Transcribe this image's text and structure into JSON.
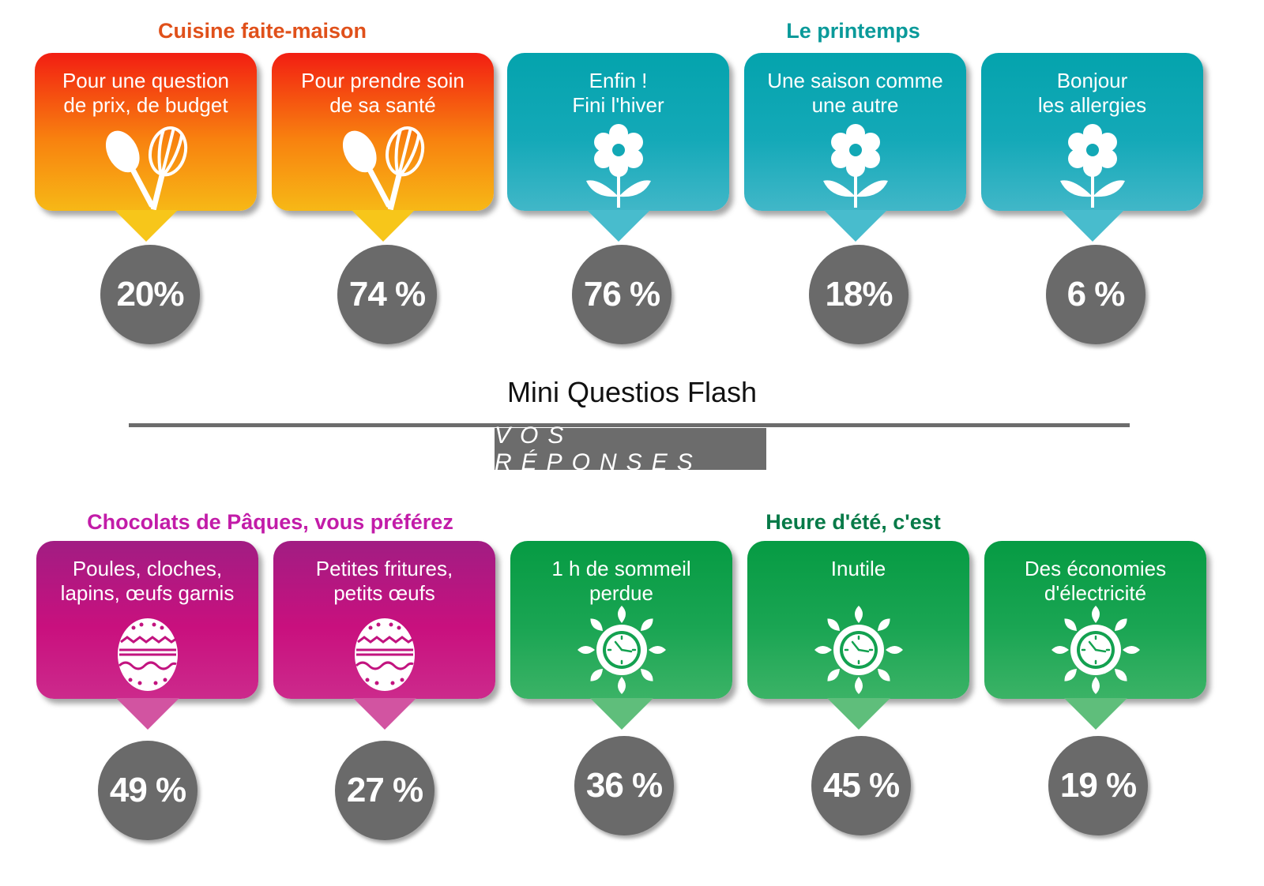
{
  "header": {
    "title": "Mini Questios Flash",
    "subtitle": "VOS RÉPONSES"
  },
  "colors": {
    "orange": "#f23c12",
    "teal": "#0a9a9a",
    "magenta": "#c21ca8",
    "green": "#077a48",
    "bubble": "#6a6a6a"
  },
  "groups": [
    {
      "title": "Cuisine faite-maison",
      "color": "#e0501a",
      "cards": [
        {
          "text": "Pour une question\nde prix, de budget",
          "icon": "spoon-whisk-icon",
          "percent": "20%"
        },
        {
          "text": "Pour prendre soin\nde sa santé",
          "icon": "spoon-whisk-icon",
          "percent": "74 %"
        }
      ]
    },
    {
      "title": "Le printemps",
      "color": "#0a9a9a",
      "cards": [
        {
          "text": "Enfin !\nFini l'hiver",
          "icon": "flower-icon",
          "percent": "76 %"
        },
        {
          "text": "Une saison comme\nune autre",
          "icon": "flower-icon",
          "percent": "18%"
        },
        {
          "text": "Bonjour\nles allergies",
          "icon": "flower-icon",
          "percent": "6 %"
        }
      ]
    },
    {
      "title": "Chocolats de Pâques, vous préférez",
      "color": "#c21ca8",
      "cards": [
        {
          "text": "Poules, cloches,\nlapins, œufs garnis",
          "icon": "easter-egg-icon",
          "percent": "49 %"
        },
        {
          "text": "Petites fritures,\npetits œufs",
          "icon": "easter-egg-icon",
          "percent": "27 %"
        }
      ]
    },
    {
      "title": "Heure d'été, c'est",
      "color": "#077a48",
      "cards": [
        {
          "text": "1 h de sommeil\nperdue",
          "icon": "sun-clock-icon",
          "percent": "36 %"
        },
        {
          "text": "Inutile",
          "icon": "sun-clock-icon",
          "percent": "45 %"
        },
        {
          "text": "Des économies\nd'électricité",
          "icon": "sun-clock-icon",
          "percent": "19 %"
        }
      ]
    }
  ]
}
